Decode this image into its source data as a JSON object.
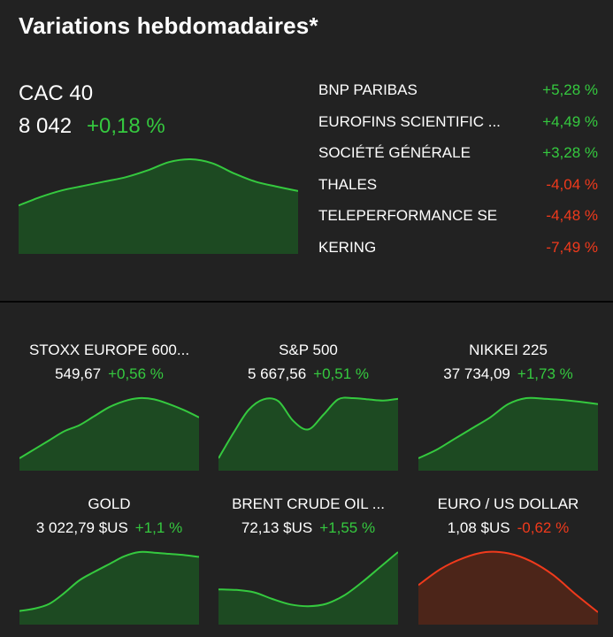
{
  "title": "Variations hebdomadaires*",
  "colors": {
    "background": "#222222",
    "up": "#35c93f",
    "down": "#f03a1c",
    "up_fill": "#1d4a22",
    "down_fill": "#4c2519"
  },
  "main": {
    "name": "CAC 40",
    "value": "8 042",
    "change": "+0,18 %",
    "direction": "up",
    "sparkline": [
      0.17,
      0.32,
      0.44,
      0.52,
      0.6,
      0.68,
      0.8,
      0.95,
      1.0,
      0.93,
      0.75,
      0.6,
      0.51,
      0.43
    ]
  },
  "movers": [
    {
      "name": "BNP PARIBAS",
      "change": "+5,28 %",
      "direction": "up"
    },
    {
      "name": "EUROFINS SCIENTIFIC ...",
      "change": "+4,49 %",
      "direction": "up"
    },
    {
      "name": "SOCIÉTÉ GÉNÉRALE",
      "change": "+3,28 %",
      "direction": "up"
    },
    {
      "name": "THALES",
      "change": "-4,04 %",
      "direction": "down"
    },
    {
      "name": "TELEPERFORMANCE SE",
      "change": "-4,48 %",
      "direction": "down"
    },
    {
      "name": "KERING",
      "change": "-7,49 %",
      "direction": "down"
    }
  ],
  "tiles": [
    {
      "name": "STOXX EUROPE 600...",
      "value": "549,67",
      "change": "+0,56 %",
      "direction": "up",
      "sparkline": [
        0.0,
        0.15,
        0.3,
        0.45,
        0.55,
        0.7,
        0.85,
        0.95,
        1.0,
        0.98,
        0.9,
        0.8,
        0.68
      ]
    },
    {
      "name": "S&P 500",
      "value": "5 667,56",
      "change": "+0,51 %",
      "direction": "up",
      "sparkline": [
        0.0,
        0.42,
        0.8,
        0.98,
        0.95,
        0.62,
        0.48,
        0.72,
        0.98,
        1.0,
        0.98,
        0.96,
        0.99
      ]
    },
    {
      "name": "NIKKEI 225",
      "value": "37 734,09",
      "change": "+1,73 %",
      "direction": "up",
      "sparkline": [
        0.0,
        0.14,
        0.32,
        0.5,
        0.68,
        0.9,
        1.0,
        0.99,
        0.97,
        0.94,
        0.9
      ]
    },
    {
      "name": "GOLD",
      "value": "3 022,79 $US",
      "change": "+1,1 %",
      "direction": "up",
      "sparkline": [
        0.02,
        0.06,
        0.14,
        0.32,
        0.53,
        0.67,
        0.8,
        0.93,
        1.0,
        0.99,
        0.97,
        0.95,
        0.92
      ]
    },
    {
      "name": "BRENT CRUDE OIL ...",
      "value": "72,13 $US",
      "change": "+1,55 %",
      "direction": "up",
      "sparkline": [
        0.38,
        0.37,
        0.33,
        0.22,
        0.13,
        0.1,
        0.14,
        0.28,
        0.5,
        0.75,
        1.0
      ]
    },
    {
      "name": "EURO / US DOLLAR",
      "value": "1,08 $US",
      "change": "-0,62 %",
      "direction": "down",
      "sparkline": [
        0.45,
        0.72,
        0.9,
        1.0,
        0.98,
        0.85,
        0.62,
        0.3,
        0.0
      ]
    }
  ]
}
